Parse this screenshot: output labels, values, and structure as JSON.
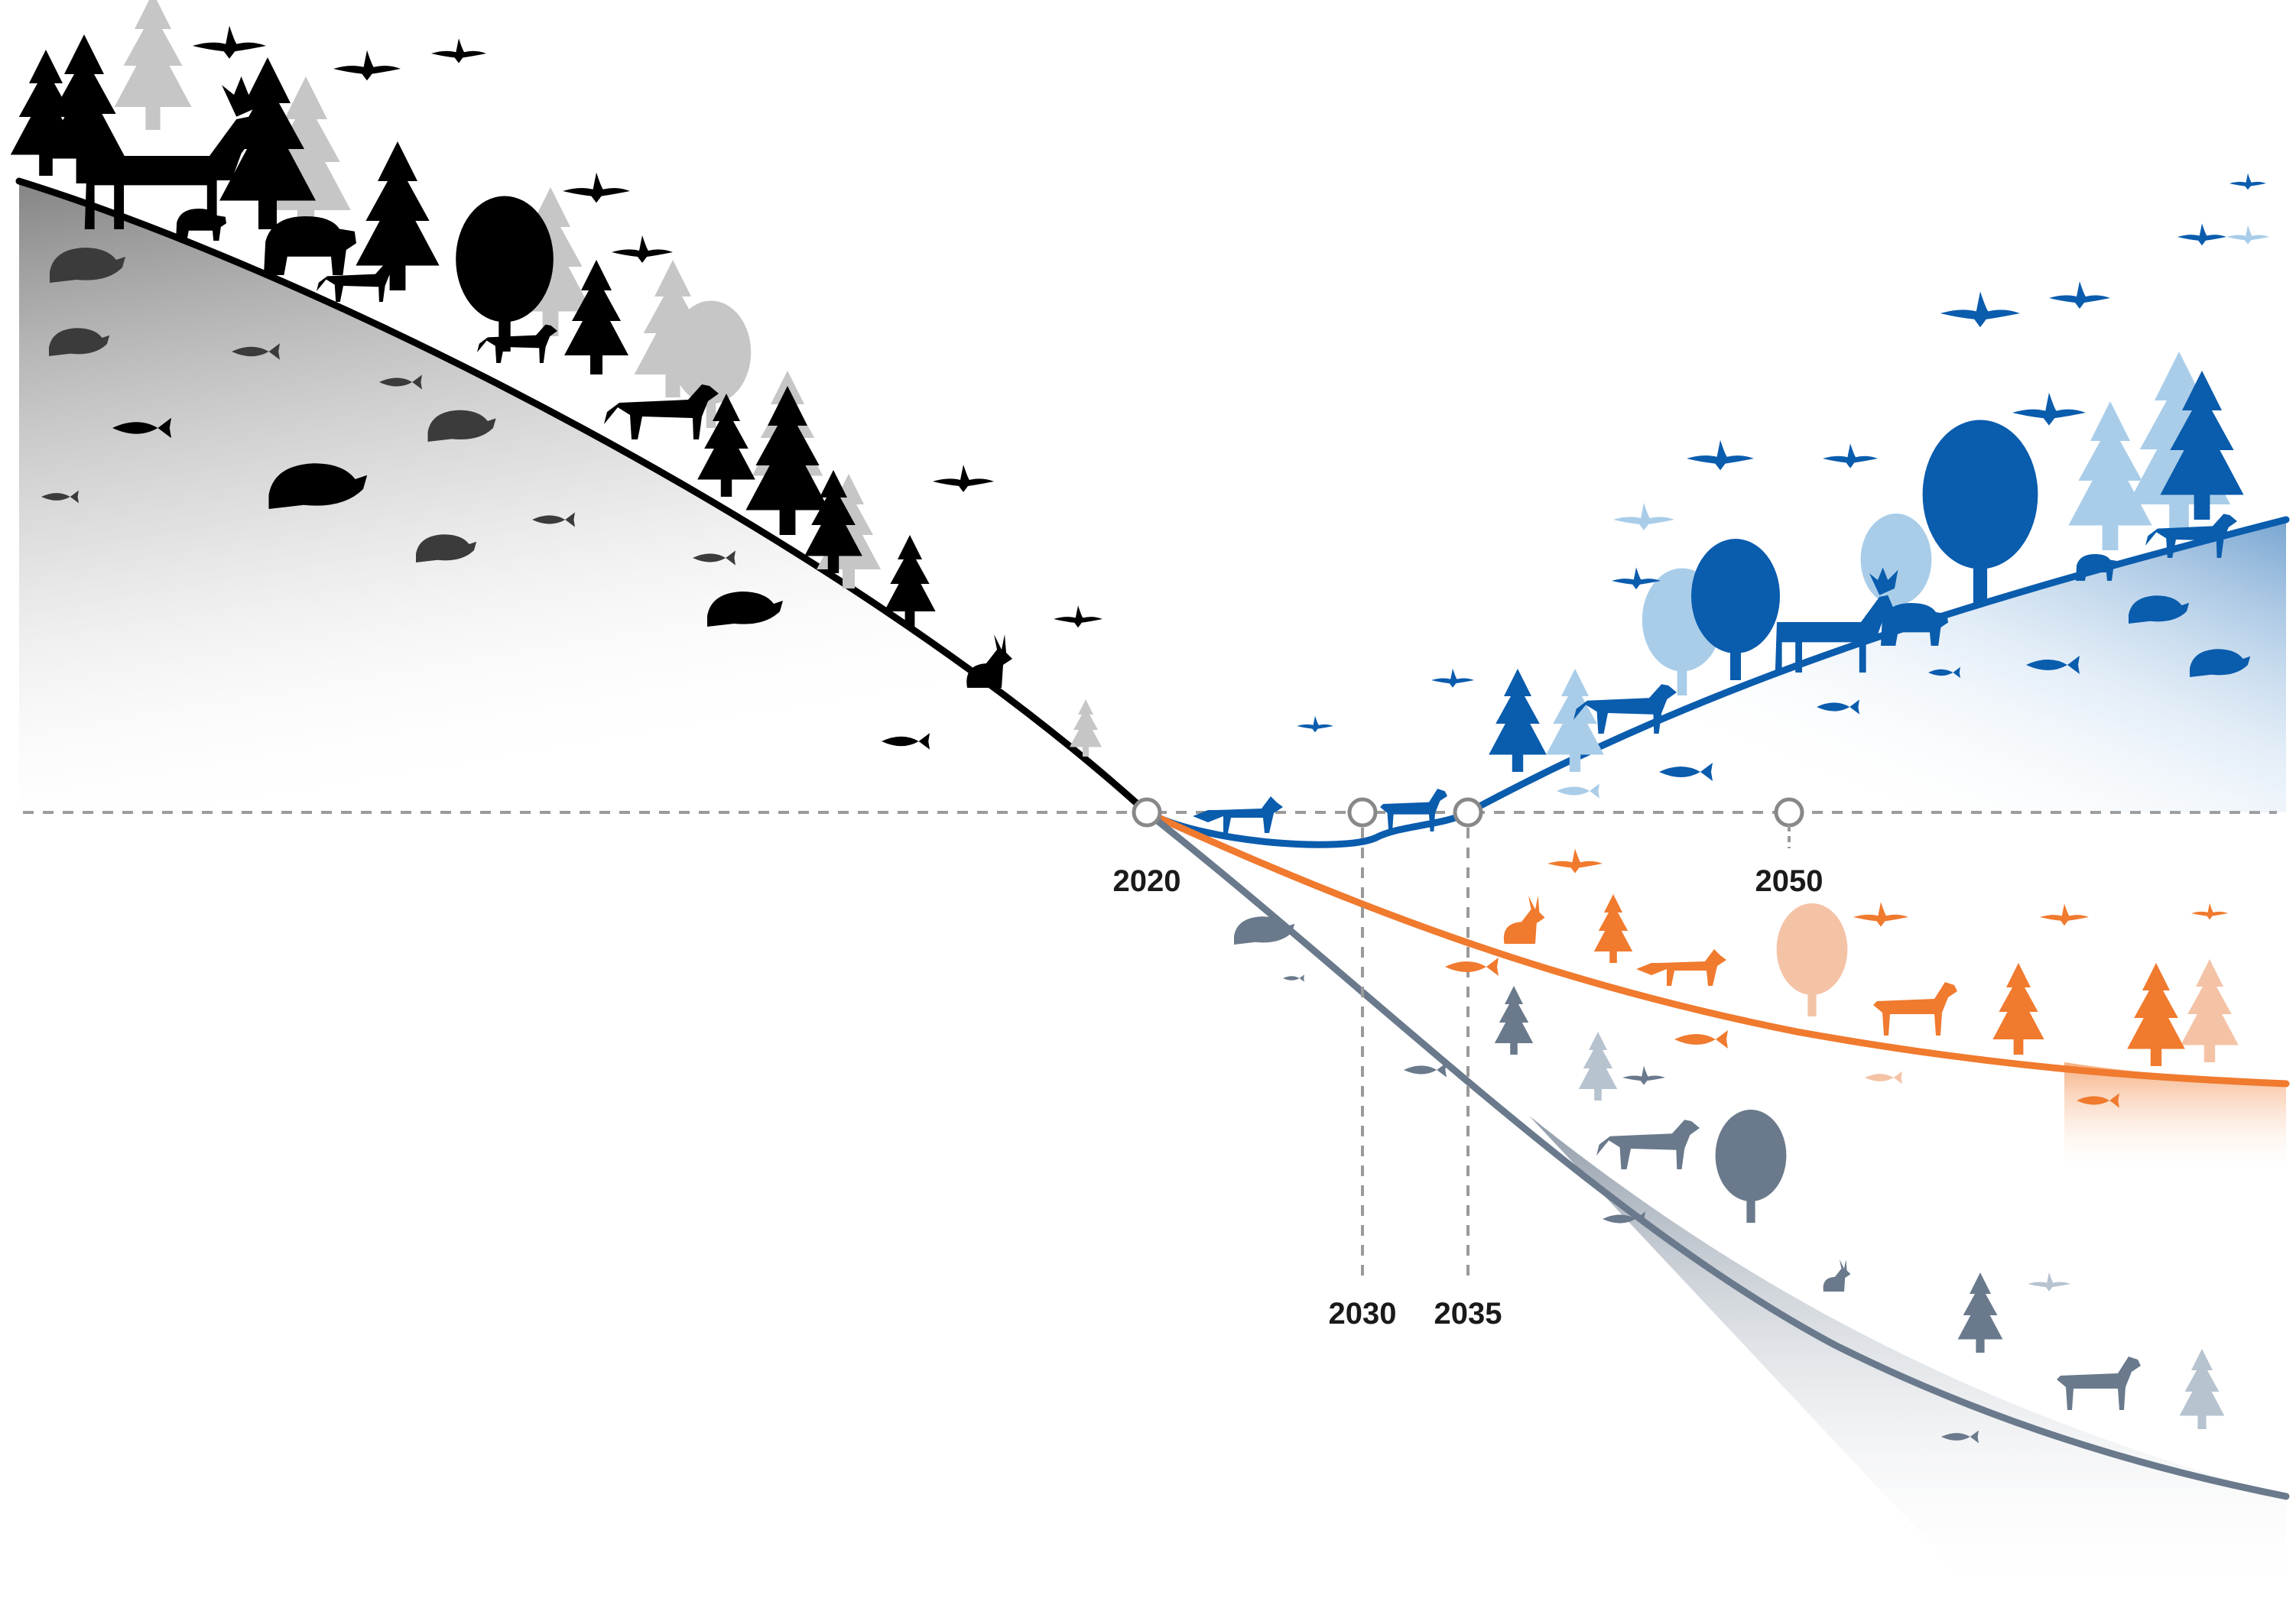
{
  "milestones": [
    {
      "id": "y2020",
      "label": "2020"
    },
    {
      "id": "y2030",
      "label": "2030"
    },
    {
      "id": "y2035",
      "label": "2035"
    },
    {
      "id": "y2050",
      "label": "2050"
    }
  ],
  "colors": {
    "history": "#000000",
    "recovery": "#0a5cad",
    "recovery_light": "#a9cde9",
    "partial": "#f07a2e",
    "partial_light": "#f4c3a6",
    "decline": "#6a7a8c",
    "decline_light": "#b7c3cf",
    "baseline": "#999999",
    "silhouette_gray": "#bdbdbd"
  },
  "icons": [
    "tree-icon",
    "moose-icon",
    "bear-icon",
    "wolf-icon",
    "fox-icon",
    "deer-icon",
    "hare-icon",
    "bird-icon",
    "fish-icon",
    "seal-icon"
  ]
}
